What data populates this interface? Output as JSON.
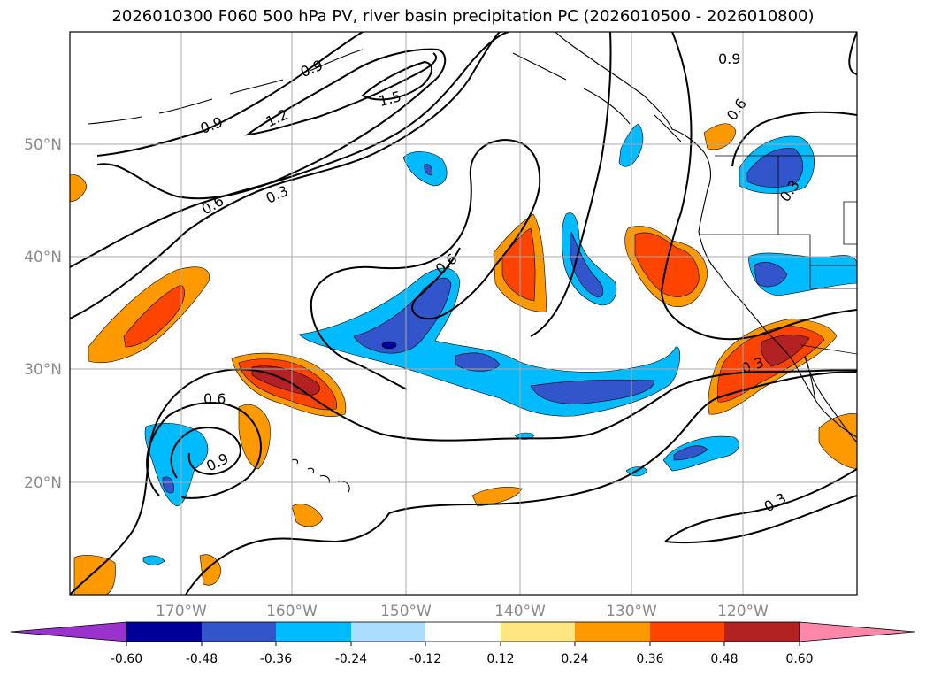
{
  "title": "2026010300 F060 500 hPa PV, river basin precipitation PC (2026010500 - 2026010800)",
  "map": {
    "lat_labels": [
      "50°N",
      "40°N",
      "30°N",
      "20°N"
    ],
    "lon_labels": [
      "170°W",
      "160°W",
      "150°W",
      "140°W",
      "130°W",
      "120°W"
    ],
    "contour_labels": [
      "0.9",
      "1.2",
      "1.5",
      "0.9",
      "0.6",
      "0.3",
      "0.6",
      "0.6",
      "0.6",
      "0.9",
      "0.3",
      "0.3",
      "0.3",
      "0.9"
    ]
  },
  "colorbar": {
    "tick_labels": [
      "-0.60",
      "-0.48",
      "-0.36",
      "-0.24",
      "-0.12",
      "0.12",
      "0.24",
      "0.36",
      "0.48",
      "0.60"
    ],
    "colors": [
      "#9933cc",
      "#000099",
      "#3355cc",
      "#00bbff",
      "#aaddff",
      "#ffffff",
      "#ffe680",
      "#ff9900",
      "#ff4400",
      "#b22222",
      "#ff88aa"
    ]
  },
  "colors": {
    "strong_negative": "#3355cc",
    "negative": "#00bbff",
    "weak_negative": "#aaddff",
    "weak_positive": "#ffe680",
    "positive": "#ff9900",
    "strong_positive": "#ff4400",
    "very_strong_positive": "#b22222",
    "darkest_negative": "#000099"
  }
}
